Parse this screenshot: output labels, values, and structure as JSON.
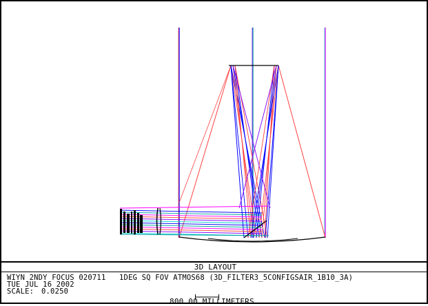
{
  "plot": {
    "title": "3D LAYOUT",
    "info_line_1": "WIYN 2NDY FOCUS 020711   1DEG SQ FOV ATMOS68 (3D_FILTER3_5CONFIGSAIR_1B10_3A)",
    "info_line_2": "TUE JUL 16 2002",
    "scale_label": "SCALE:",
    "scale_value": "0.0250",
    "scale_bar_label": "800.00 MILLIMETERS"
  },
  "colors": {
    "ray_colors": [
      "#0000ff",
      "#00a0a0",
      "#ff00ff",
      "#ff4040",
      "#8000ff",
      "#00d0d0"
    ],
    "outline": "#000000",
    "background": "#ffffff"
  }
}
